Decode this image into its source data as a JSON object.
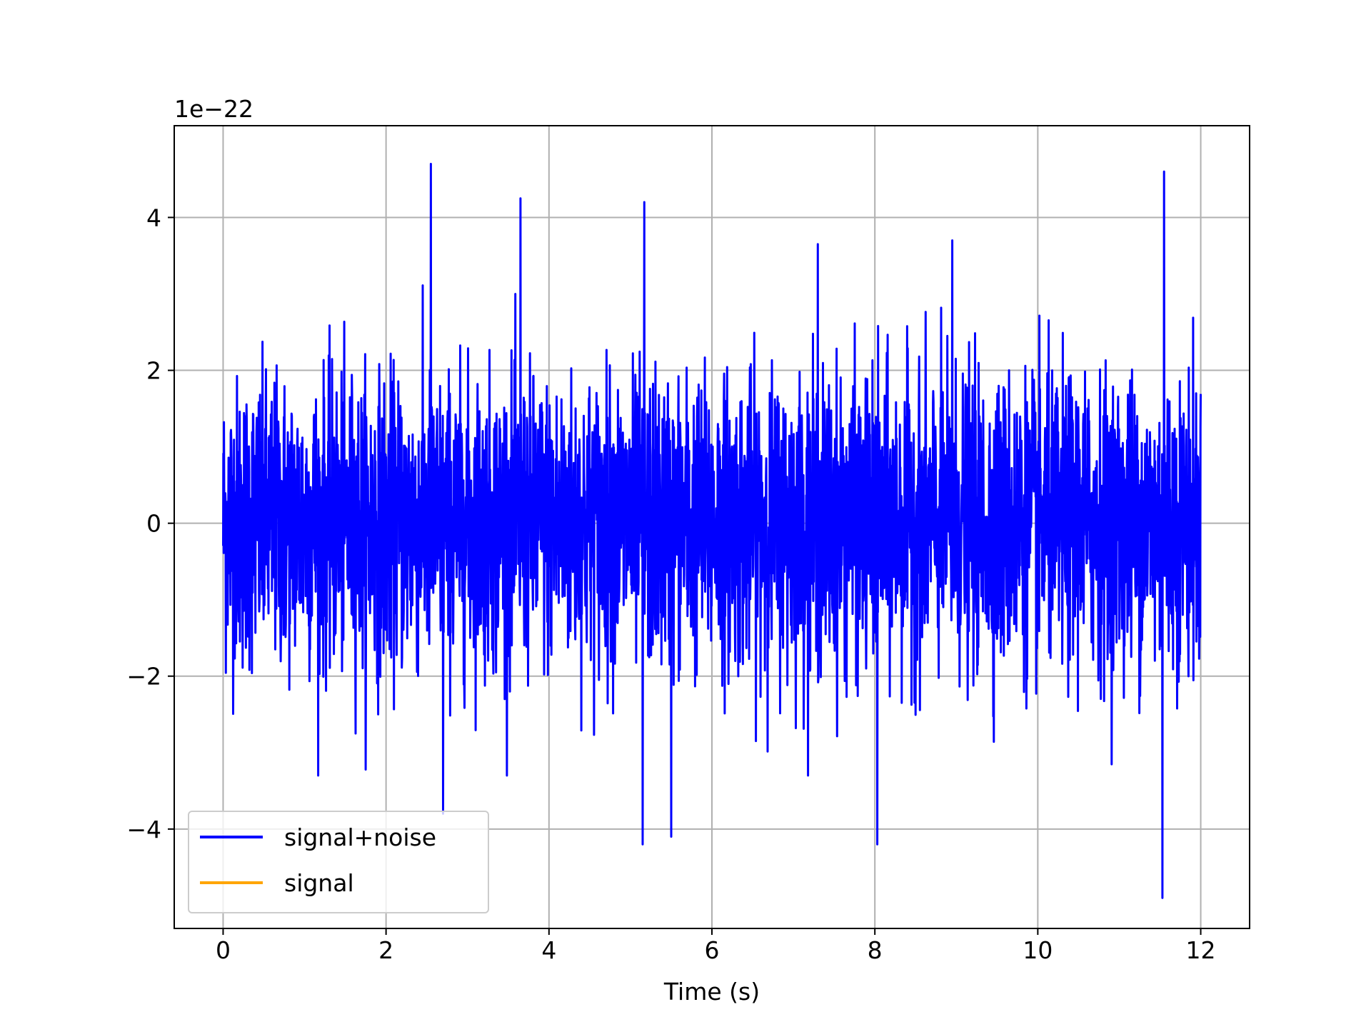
{
  "chart_data": {
    "type": "line",
    "title": "",
    "xlabel": "Time (s)",
    "ylabel": "",
    "y_offset_label": "1e−22",
    "y_scale_exponent": -22,
    "xlim": [
      -0.6,
      12.6
    ],
    "ylim": [
      -5.3,
      5.2
    ],
    "xticks": [
      0,
      2,
      4,
      6,
      8,
      10,
      12
    ],
    "xtick_labels": [
      "0",
      "2",
      "4",
      "6",
      "8",
      "10",
      "12"
    ],
    "yticks": [
      -4,
      -2,
      0,
      2,
      4
    ],
    "ytick_labels": [
      "−4",
      "−2",
      "0",
      "2",
      "4"
    ],
    "grid": true,
    "legend_position": "lower-left",
    "series": [
      {
        "name": "signal+noise",
        "color": "#0000ff",
        "x_start": 0,
        "x_end": 12,
        "envelope_description": "dense noise between about -2.5 and 2.5 (x1e-22)",
        "notable_peaks": [
          {
            "x": 2.55,
            "y": 4.7
          },
          {
            "x": 3.65,
            "y": 4.25
          },
          {
            "x": 5.17,
            "y": 4.2
          },
          {
            "x": 11.55,
            "y": 4.6
          },
          {
            "x": 7.3,
            "y": 3.65
          },
          {
            "x": 8.95,
            "y": 3.7
          }
        ],
        "notable_troughs": [
          {
            "x": 5.15,
            "y": -4.2
          },
          {
            "x": 5.5,
            "y": -4.1
          },
          {
            "x": 8.03,
            "y": -4.2
          },
          {
            "x": 11.53,
            "y": -4.9
          },
          {
            "x": 2.7,
            "y": -3.8
          }
        ]
      },
      {
        "name": "signal",
        "color": "#ffa500",
        "x": [
          0,
          12
        ],
        "y": [
          0,
          0
        ]
      }
    ]
  }
}
